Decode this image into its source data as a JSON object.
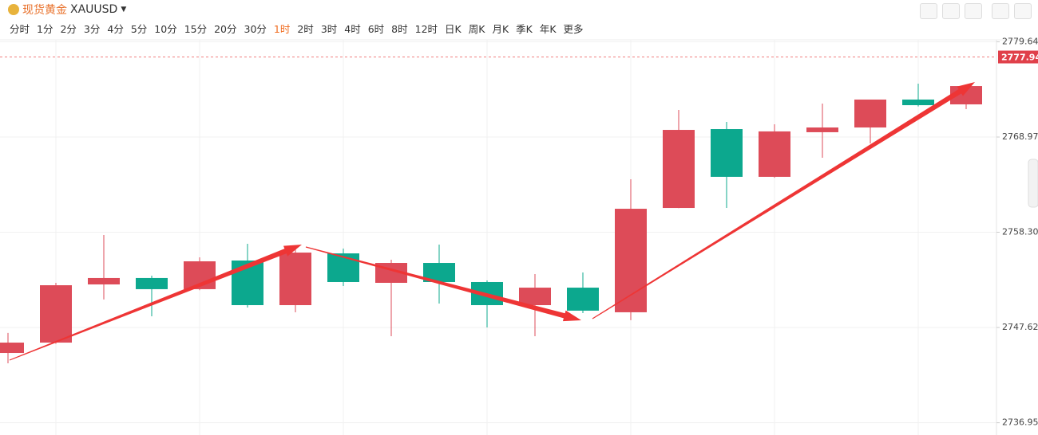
{
  "header": {
    "symbol_name": "现货黄金",
    "symbol": "XAUUSD",
    "timeframes": [
      "分时",
      "1分",
      "2分",
      "3分",
      "4分",
      "5分",
      "10分",
      "15分",
      "20分",
      "30分",
      "1时",
      "2时",
      "3时",
      "4时",
      "6时",
      "8时",
      "12时",
      "日K",
      "周K",
      "月K",
      "季K",
      "年K",
      "更多"
    ],
    "active_index": 10
  },
  "chart_data": {
    "type": "candlestick",
    "categories": [
      null,
      null,
      null,
      null,
      null,
      null,
      null,
      null,
      null,
      null,
      null,
      null,
      null,
      null,
      null,
      null,
      null,
      null,
      null,
      null,
      null
    ],
    "open": [
      2744.77,
      2745.93,
      2752.45,
      2753.17,
      2751.92,
      2755.13,
      2750.13,
      2755.93,
      2752.63,
      2754.86,
      2752.72,
      2750.13,
      2752.09,
      2749.33,
      2761.02,
      2769.86,
      2764.51,
      2769.51,
      2770.04,
      2773.17,
      2772.63
    ],
    "high": [
      2747.01,
      2752.63,
      2757.99,
      2753.43,
      2755.49,
      2757.01,
      2756.47,
      2756.47,
      2755.22,
      2756.92,
      2752.9,
      2753.61,
      2753.79,
      2764.24,
      2772.01,
      2770.67,
      2770.4,
      2772.72,
      2773.17,
      2774.95,
      2774.7
    ],
    "low": [
      2743.61,
      2745.8,
      2750.76,
      2748.88,
      2751.8,
      2749.86,
      2749.33,
      2752.27,
      2746.65,
      2750.31,
      2747.63,
      2746.65,
      2749.24,
      2748.44,
      2761.0,
      2761.02,
      2764.4,
      2766.65,
      2768.26,
      2772.4,
      2772.1
    ],
    "close": [
      2745.93,
      2752.36,
      2753.17,
      2751.92,
      2755.04,
      2750.13,
      2756.02,
      2752.72,
      2754.86,
      2752.72,
      2750.13,
      2752.09,
      2749.51,
      2760.93,
      2769.77,
      2764.51,
      2769.6,
      2770.04,
      2773.17,
      2772.54,
      2774.68
    ],
    "up_color": "#dd4b58",
    "down_color": "#0ca88e",
    "current_price": 2777.94,
    "ylim": [
      2736.95,
      2779.64
    ],
    "yticks": [
      {
        "value": 2736.95,
        "label": "2736.95"
      },
      {
        "value": 2747.62,
        "label": "2747.62"
      },
      {
        "value": 2758.3,
        "label": "2758.30"
      },
      {
        "value": 2768.97,
        "label": "2768.97"
      },
      {
        "value": 2779.64,
        "label": "2779.64"
      }
    ],
    "grid": true
  }
}
